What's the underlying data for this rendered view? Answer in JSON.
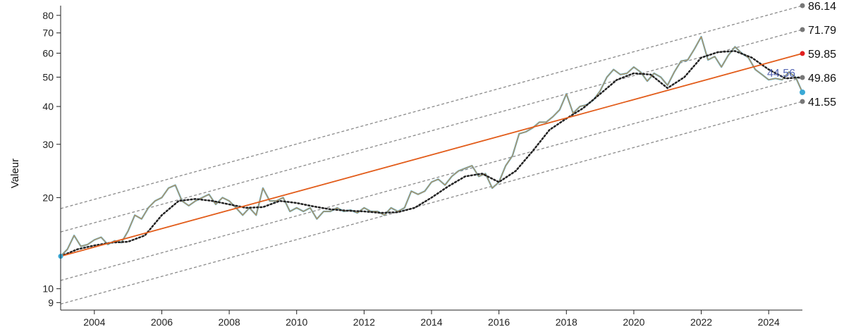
{
  "chart_data": {
    "type": "line",
    "title": "",
    "xlabel": "",
    "ylabel": "Valeur",
    "y_scale": "log",
    "xlim": [
      2003.0,
      2025.0
    ],
    "ylim": [
      8.5,
      86.14
    ],
    "x_ticks": [
      "2004",
      "2006",
      "2008",
      "2010",
      "2012",
      "2014",
      "2016",
      "2018",
      "2020",
      "2022",
      "2024"
    ],
    "y_ticks": [
      "9",
      "10",
      "20",
      "30",
      "40",
      "50",
      "60",
      "70",
      "80"
    ],
    "colors": {
      "price": "#3aa9d6",
      "smoothed": "#e0893a",
      "trend": "#e25c1a",
      "moving_average": "#222222",
      "channel": "#8a8a8a",
      "marker_gray": "#777777",
      "marker_red": "#e01f1f",
      "last_value": "#3b4fa8"
    },
    "trend_line": {
      "name": "",
      "start": {
        "x": 2003.0,
        "y": 12.8
      },
      "end": {
        "x": 2025.0,
        "y": 59.85
      },
      "end_label": "59.85"
    },
    "channels": [
      {
        "start": {
          "x": 2003.0,
          "y": 18.4
        },
        "end": {
          "x": 2025.0,
          "y": 86.14
        },
        "end_label": "86.14"
      },
      {
        "start": {
          "x": 2003.0,
          "y": 15.4
        },
        "end": {
          "x": 2025.0,
          "y": 71.79
        },
        "end_label": "71.79"
      },
      {
        "start": {
          "x": 2003.0,
          "y": 10.65
        },
        "end": {
          "x": 2025.0,
          "y": 49.86
        },
        "end_label": "49.86"
      },
      {
        "start": {
          "x": 2003.0,
          "y": 8.9
        },
        "end": {
          "x": 2025.0,
          "y": 41.55
        },
        "end_label": "41.55"
      }
    ],
    "last_value_label": "44.56",
    "series": [
      {
        "name": "",
        "x": [
          2003.0,
          2003.2,
          2003.4,
          2003.6,
          2003.8,
          2004.0,
          2004.2,
          2004.4,
          2004.6,
          2004.8,
          2005.0,
          2005.2,
          2005.4,
          2005.6,
          2005.8,
          2006.0,
          2006.2,
          2006.4,
          2006.6,
          2006.8,
          2007.0,
          2007.2,
          2007.4,
          2007.6,
          2007.8,
          2008.0,
          2008.2,
          2008.4,
          2008.6,
          2008.8,
          2009.0,
          2009.2,
          2009.4,
          2009.6,
          2009.8,
          2010.0,
          2010.2,
          2010.4,
          2010.6,
          2010.8,
          2011.0,
          2011.2,
          2011.4,
          2011.6,
          2011.8,
          2012.0,
          2012.2,
          2012.4,
          2012.6,
          2012.8,
          2013.0,
          2013.2,
          2013.4,
          2013.6,
          2013.8,
          2014.0,
          2014.2,
          2014.4,
          2014.6,
          2014.8,
          2015.0,
          2015.2,
          2015.4,
          2015.6,
          2015.8,
          2016.0,
          2016.2,
          2016.4,
          2016.6,
          2016.8,
          2017.0,
          2017.2,
          2017.4,
          2017.6,
          2017.8,
          2018.0,
          2018.2,
          2018.4,
          2018.6,
          2018.8,
          2019.0,
          2019.2,
          2019.4,
          2019.6,
          2019.8,
          2020.0,
          2020.2,
          2020.4,
          2020.6,
          2020.8,
          2021.0,
          2021.2,
          2021.4,
          2021.6,
          2021.8,
          2022.0,
          2022.2,
          2022.4,
          2022.6,
          2022.8,
          2023.0,
          2023.2,
          2023.4,
          2023.6,
          2023.8,
          2024.0,
          2024.2,
          2024.4,
          2024.6,
          2024.8,
          2025.0
        ],
        "values": [
          12.8,
          13.5,
          15.0,
          13.8,
          14.0,
          14.5,
          14.8,
          14.0,
          14.4,
          14.2,
          15.5,
          17.5,
          17.0,
          18.5,
          19.5,
          20.0,
          21.5,
          22.0,
          19.5,
          18.8,
          19.5,
          20.0,
          20.5,
          19.0,
          20.0,
          19.5,
          18.5,
          17.5,
          18.5,
          17.5,
          21.5,
          19.5,
          19.5,
          20.0,
          18.0,
          18.5,
          18.0,
          18.5,
          17.0,
          18.0,
          18.0,
          18.5,
          18.0,
          18.2,
          17.8,
          18.5,
          18.0,
          18.0,
          17.5,
          18.5,
          18.0,
          18.5,
          21.0,
          20.5,
          21.0,
          22.5,
          23.0,
          22.0,
          23.5,
          24.5,
          25.0,
          25.5,
          23.5,
          24.0,
          21.5,
          22.5,
          25.5,
          27.5,
          32.5,
          33.0,
          34.0,
          35.5,
          35.5,
          37.0,
          39.0,
          44.0,
          38.0,
          40.0,
          40.5,
          42.0,
          45.0,
          50.0,
          53.0,
          51.0,
          51.5,
          54.0,
          52.0,
          48.5,
          51.5,
          50.0,
          47.0,
          52.0,
          56.5,
          57.0,
          62.0,
          68.0,
          57.0,
          58.5,
          54.0,
          59.0,
          63.0,
          60.0,
          58.0,
          53.0,
          51.0,
          49.0,
          49.5,
          49.0,
          52.0,
          50.0,
          44.56
        ]
      }
    ],
    "moving_average": {
      "name": "",
      "x": [
        2003.0,
        2003.5,
        2004.0,
        2004.5,
        2005.0,
        2005.5,
        2006.0,
        2006.5,
        2007.0,
        2007.5,
        2008.0,
        2008.5,
        2009.0,
        2009.5,
        2010.0,
        2010.5,
        2011.0,
        2011.5,
        2012.0,
        2012.5,
        2013.0,
        2013.5,
        2014.0,
        2014.5,
        2015.0,
        2015.5,
        2016.0,
        2016.5,
        2017.0,
        2017.5,
        2018.0,
        2018.5,
        2019.0,
        2019.5,
        2020.0,
        2020.5,
        2021.0,
        2021.5,
        2022.0,
        2022.5,
        2023.0,
        2023.5,
        2024.0,
        2024.5,
        2025.0
      ],
      "values": [
        12.8,
        13.5,
        13.9,
        14.2,
        14.3,
        15.0,
        17.5,
        19.5,
        19.8,
        19.5,
        19.0,
        18.5,
        18.6,
        19.5,
        19.2,
        18.7,
        18.3,
        18.1,
        18.0,
        17.8,
        17.9,
        18.5,
        20.0,
        21.8,
        23.5,
        24.0,
        22.5,
        24.5,
        28.5,
        33.5,
        36.5,
        39.5,
        44.0,
        49.0,
        51.5,
        51.0,
        46.0,
        50.0,
        58.0,
        60.5,
        61.0,
        58.0,
        53.0,
        49.5,
        50.0
      ]
    }
  }
}
